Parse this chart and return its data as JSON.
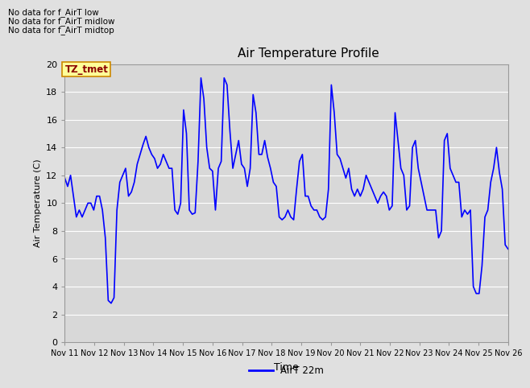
{
  "title": "Air Temperature Profile",
  "xlabel": "Time",
  "ylabel": "Air Temperature (C)",
  "line_color": "#0000FF",
  "line_label": "AirT 22m",
  "background_color": "#e0e0e0",
  "plot_bg_color": "#d8d8d8",
  "ylim": [
    0,
    20
  ],
  "yticks": [
    0,
    2,
    4,
    6,
    8,
    10,
    12,
    14,
    16,
    18,
    20
  ],
  "tz_label": "TZ_tmet",
  "no_data_lines": [
    "No data for f_AirT low",
    "No data for f_AirT midlow",
    "No data for f_AirT midtop"
  ],
  "x_tick_labels": [
    "Nov 11",
    "Nov 12",
    "Nov 13",
    "Nov 14",
    "Nov 15",
    "Nov 16",
    "Nov 17",
    "Nov 18",
    "Nov 19",
    "Nov 20",
    "Nov 21",
    "Nov 22",
    "Nov 23",
    "Nov 24",
    "Nov 25",
    "Nov 26"
  ],
  "temperature_data": [
    11.8,
    11.2,
    12.0,
    10.5,
    9.0,
    9.5,
    9.0,
    9.5,
    10.0,
    10.0,
    9.5,
    10.5,
    10.5,
    9.5,
    7.5,
    3.0,
    2.8,
    3.2,
    9.5,
    11.5,
    12.0,
    12.5,
    10.5,
    10.8,
    11.5,
    12.8,
    13.5,
    14.2,
    14.8,
    14.0,
    13.5,
    13.2,
    12.5,
    12.8,
    13.5,
    13.0,
    12.5,
    12.5,
    9.5,
    9.2,
    10.0,
    16.7,
    15.0,
    9.5,
    9.2,
    9.3,
    13.0,
    19.0,
    17.5,
    14.0,
    12.5,
    12.3,
    9.5,
    12.5,
    13.0,
    19.0,
    18.5,
    15.2,
    12.5,
    13.5,
    14.5,
    12.8,
    12.5,
    11.2,
    12.5,
    17.8,
    16.5,
    13.5,
    13.5,
    14.5,
    13.3,
    12.5,
    11.5,
    11.2,
    9.0,
    8.8,
    9.0,
    9.5,
    9.0,
    8.8,
    11.0,
    13.0,
    13.5,
    10.5,
    10.5,
    9.8,
    9.5,
    9.5,
    9.0,
    8.8,
    9.0,
    11.0,
    18.5,
    16.5,
    13.5,
    13.2,
    12.5,
    11.8,
    12.5,
    11.0,
    10.5,
    11.0,
    10.5,
    11.0,
    12.0,
    11.5,
    11.0,
    10.5,
    10.0,
    10.5,
    10.8,
    10.5,
    9.5,
    9.8,
    16.5,
    14.5,
    12.5,
    12.0,
    9.5,
    9.8,
    14.0,
    14.5,
    12.5,
    11.5,
    10.5,
    9.5,
    9.5,
    9.5,
    9.5,
    7.5,
    8.0,
    14.5,
    15.0,
    12.5,
    12.0,
    11.5,
    11.5,
    9.0,
    9.5,
    9.2,
    9.5,
    4.0,
    3.5,
    3.5,
    5.5,
    9.0,
    9.5,
    11.5,
    12.5,
    14.0,
    12.2,
    11.0,
    7.0,
    6.7
  ]
}
